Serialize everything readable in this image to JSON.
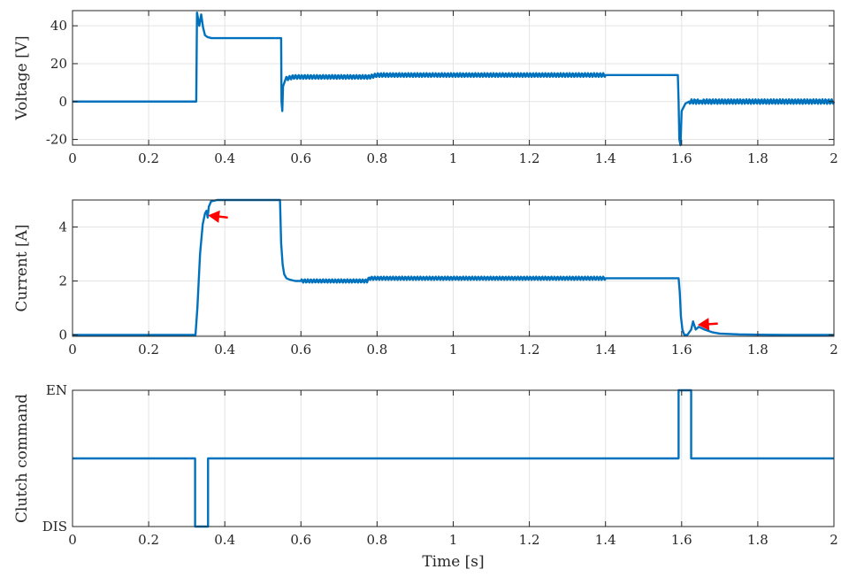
{
  "colors": {
    "series": "#0072BD",
    "annotation_arrow": "#ff0000",
    "grid": "#e3e3e3",
    "axes": "#262626"
  },
  "chart_data": [
    {
      "type": "line",
      "ylabel": "Voltage [V]",
      "xlabel": "",
      "xlim": [
        0,
        2
      ],
      "ylim": [
        -23,
        48
      ],
      "xticks": [
        0,
        0.2,
        0.4,
        0.6,
        0.8,
        1,
        1.2,
        1.4,
        1.6,
        1.8,
        2
      ],
      "xtick_labels": [
        "0",
        "0.2",
        "0.4",
        "0.6",
        "0.8",
        "1",
        "1.2",
        "1.4",
        "1.6",
        "1.8",
        "2"
      ],
      "yticks": [
        -20,
        0,
        20,
        40
      ],
      "ytick_labels": [
        "-20",
        "0",
        "20",
        "40"
      ],
      "grid": true,
      "series": [
        {
          "x": [
            0,
            0.325,
            0.327,
            0.333,
            0.338,
            0.343,
            0.348,
            0.355,
            0.365,
            0.38,
            0.4,
            0.5,
            0.548,
            0.549,
            0.551,
            0.553,
            0.56,
            0.58,
            0.6,
            0.7,
            0.78,
            0.8,
            1.0,
            1.2,
            1.4,
            1.59,
            1.592,
            1.594,
            1.597,
            1.6,
            1.61,
            1.62,
            1.65,
            1.7,
            1.8,
            2.0
          ],
          "y": [
            0,
            0,
            47,
            40,
            46,
            39,
            35,
            34,
            33.5,
            33.5,
            33.5,
            33.5,
            33.5,
            0,
            -5,
            8,
            12,
            13,
            13,
            13,
            13,
            14,
            14,
            14,
            14,
            14,
            0,
            -20,
            -23,
            -5,
            -1,
            0,
            0,
            0,
            0,
            0
          ]
        }
      ],
      "ripple": [
        {
          "from": 0,
          "to": 0.322,
          "amp": 1.2
        },
        {
          "from": 0.557,
          "to": 1.588,
          "amp": 1.0
        },
        {
          "from": 1.615,
          "to": 2.0,
          "amp": 1.2
        }
      ]
    },
    {
      "type": "line",
      "ylabel": "Current [A]",
      "xlabel": "",
      "xlim": [
        0,
        2
      ],
      "ylim": [
        -0.05,
        5
      ],
      "xticks": [
        0,
        0.2,
        0.4,
        0.6,
        0.8,
        1,
        1.2,
        1.4,
        1.6,
        1.8,
        2
      ],
      "xtick_labels": [
        "0",
        "0.2",
        "0.4",
        "0.6",
        "0.8",
        "1",
        "1.2",
        "1.4",
        "1.6",
        "1.8",
        "2"
      ],
      "yticks": [
        0,
        2,
        4
      ],
      "ytick_labels": [
        "0",
        "2",
        "4"
      ],
      "grid": true,
      "series": [
        {
          "x": [
            0,
            0.323,
            0.328,
            0.335,
            0.342,
            0.348,
            0.352,
            0.355,
            0.358,
            0.364,
            0.38,
            0.45,
            0.545,
            0.548,
            0.552,
            0.556,
            0.562,
            0.57,
            0.585,
            0.6,
            0.7,
            0.775,
            0.778,
            0.8,
            1.2,
            1.4,
            1.592,
            1.595,
            1.598,
            1.602,
            1.607,
            1.615,
            1.625,
            1.63,
            1.637,
            1.645,
            1.66,
            1.68,
            1.7,
            1.75,
            1.8,
            1.9,
            2.0
          ],
          "y": [
            0,
            0,
            1.0,
            3.0,
            4.1,
            4.5,
            4.6,
            4.35,
            4.75,
            4.95,
            5.0,
            5.0,
            5.0,
            3.4,
            2.6,
            2.25,
            2.1,
            2.05,
            2.0,
            2.0,
            2.0,
            2.0,
            2.1,
            2.1,
            2.1,
            2.1,
            2.1,
            1.6,
            0.7,
            0.2,
            0.0,
            0.0,
            0.2,
            0.5,
            0.2,
            0.3,
            0.2,
            0.1,
            0.05,
            0.02,
            0.01,
            0.0,
            0.0
          ]
        }
      ],
      "ripple": [
        {
          "from": 0,
          "to": 0.321,
          "amp": 0.04
        },
        {
          "from": 0.6,
          "to": 1.59,
          "amp": 0.06
        }
      ],
      "annotations": [
        {
          "type": "arrow",
          "from": [
            0.408,
            4.35
          ],
          "to": [
            0.362,
            4.42
          ]
        },
        {
          "type": "arrow",
          "from": [
            1.695,
            0.42
          ],
          "to": [
            1.648,
            0.38
          ]
        }
      ]
    },
    {
      "type": "line",
      "ylabel": "Clutch command",
      "xlabel": "Time [s]",
      "xlim": [
        0,
        2
      ],
      "ylim": [
        -1,
        1
      ],
      "xticks": [
        0,
        0.2,
        0.4,
        0.6,
        0.8,
        1,
        1.2,
        1.4,
        1.6,
        1.8,
        2
      ],
      "xtick_labels": [
        "0",
        "0.2",
        "0.4",
        "0.6",
        "0.8",
        "1",
        "1.2",
        "1.4",
        "1.6",
        "1.8",
        "2"
      ],
      "yticks": [
        -1,
        1
      ],
      "ytick_labels": [
        "DIS",
        "EN"
      ],
      "grid": true,
      "series": [
        {
          "x": [
            0,
            0.322,
            0.322,
            0.356,
            0.356,
            1.592,
            1.592,
            1.625,
            1.625,
            2.0
          ],
          "y": [
            0,
            0,
            -1,
            -1,
            0,
            0,
            1,
            1,
            0,
            0
          ]
        }
      ]
    }
  ]
}
